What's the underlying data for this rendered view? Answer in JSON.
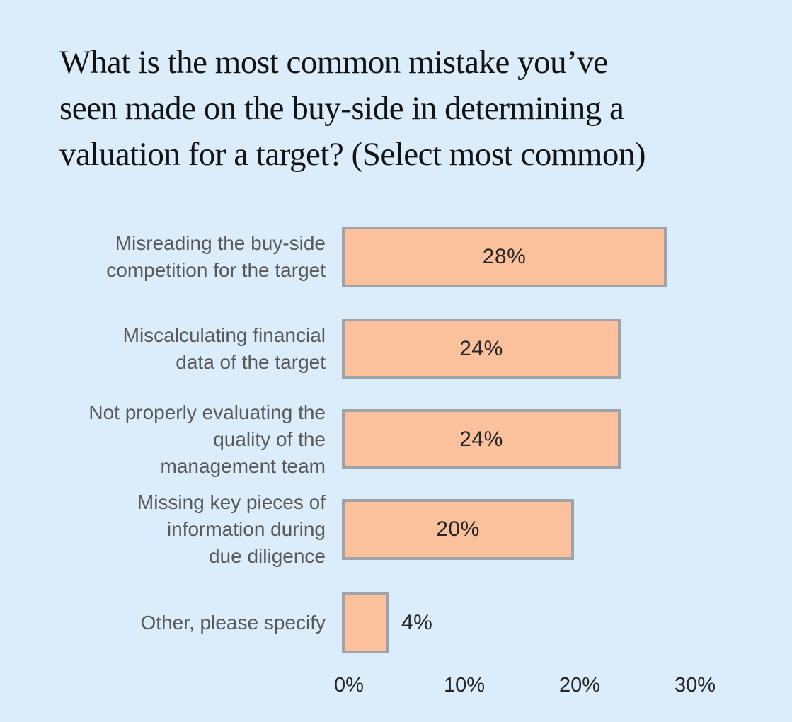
{
  "page": {
    "background": "#DBEDFA"
  },
  "title": {
    "full": "What is the most common mistake you’ve seen made on the buy-side in determining a valuation for a target? (Select most common)",
    "lines": [
      "What is the most common mistake you’ve",
      "seen made on the buy-side in determining a",
      "valuation for a target? (Select most common)"
    ]
  },
  "chart": {
    "rows": [
      {
        "label_lines": [
          "Misreading the buy-side",
          "competition for the target"
        ],
        "value_label": "28%"
      },
      {
        "label_lines": [
          "Miscalculating financial",
          "data of the target"
        ],
        "value_label": "24%"
      },
      {
        "label_lines": [
          "Not properly evaluating the",
          "quality of the",
          "management team"
        ],
        "value_label": "24%"
      },
      {
        "label_lines": [
          "Missing key pieces of",
          "information during",
          "due diligence"
        ],
        "value_label": "20%"
      },
      {
        "label_lines": [
          "Other, please specify"
        ],
        "value_label": "4%"
      }
    ]
  },
  "axis": {
    "ticks": [
      "0%",
      "10%",
      "20%",
      "30%"
    ]
  },
  "colors": {
    "background": "#DBEDFA",
    "bar_fill": "#FBC19D",
    "bar_border": "#9EA2A9",
    "category_text": "#595959",
    "value_text": "#262626",
    "title_text": "#131313"
  },
  "chart_data": {
    "type": "bar",
    "orientation": "horizontal",
    "title": "What is the most common mistake you’ve seen made on the buy-side in determining a valuation for a target? (Select most common)",
    "categories": [
      "Misreading the buy-side competition for the target",
      "Miscalculating financial data of the target",
      "Not properly evaluating the quality of the management team",
      "Missing key pieces of information during due diligence",
      "Other, please specify"
    ],
    "values": [
      28,
      24,
      24,
      20,
      4
    ],
    "value_labels": [
      "28%",
      "24%",
      "24%",
      "20%",
      "4%"
    ],
    "xlabel": "",
    "ylabel": "",
    "xlim": [
      0,
      35
    ],
    "x_ticks": [
      0,
      10,
      20,
      30
    ],
    "x_tick_labels": [
      "0%",
      "10%",
      "20%",
      "30%"
    ],
    "grid": false,
    "legend": false
  }
}
